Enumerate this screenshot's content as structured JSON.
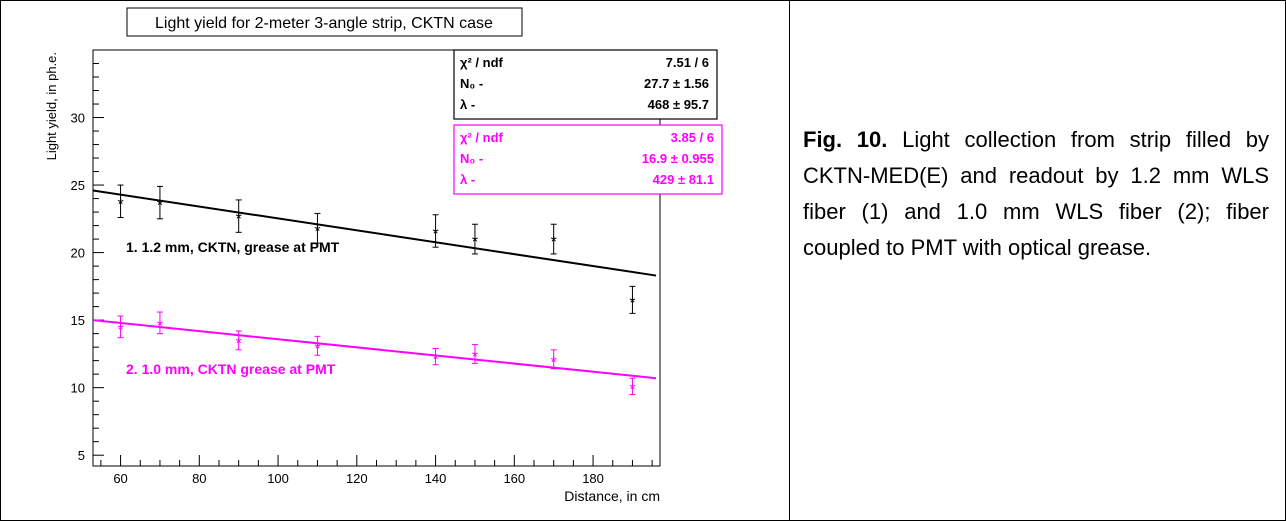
{
  "chart_data": {
    "type": "scatter",
    "title": "Light yield for 2-meter 3-angle strip, CKTN case",
    "xlabel": "Distance, in cm",
    "ylabel": "Light yield, in ph.e.",
    "xlim": [
      53,
      197
    ],
    "ylim": [
      4.2,
      35
    ],
    "xticks": [
      60,
      80,
      100,
      120,
      140,
      160,
      180
    ],
    "yticks": [
      5,
      10,
      15,
      20,
      25,
      30
    ],
    "grid": false,
    "series": [
      {
        "name": "1. 1.2 mm,  CKTN, grease at  PMT",
        "color": "#000000",
        "marker": "asterisk",
        "x": [
          60,
          70,
          90,
          110,
          140,
          150,
          170,
          190
        ],
        "y": [
          23.8,
          23.7,
          22.7,
          21.8,
          21.6,
          21.0,
          21.0,
          16.5
        ],
        "err": [
          1.2,
          1.2,
          1.2,
          1.1,
          1.2,
          1.1,
          1.1,
          1.0
        ],
        "fit": {
          "x": [
            53,
            196
          ],
          "y": [
            24.6,
            18.3
          ]
        }
      },
      {
        "name": "2. 1.0 mm,  CKTN grease at  PMT",
        "color": "#ff00ff",
        "marker": "asterisk",
        "x": [
          60,
          70,
          90,
          110,
          140,
          150,
          170,
          190
        ],
        "y": [
          14.5,
          14.8,
          13.5,
          13.1,
          12.3,
          12.5,
          12.1,
          10.1
        ],
        "err": [
          0.8,
          0.8,
          0.7,
          0.7,
          0.6,
          0.7,
          0.7,
          0.6
        ],
        "fit": {
          "x": [
            53,
            196
          ],
          "y": [
            15.0,
            10.7
          ]
        }
      }
    ],
    "stats_boxes": [
      {
        "color": "#000000",
        "rows": [
          {
            "label": "χ² / ndf",
            "value": "7.51 / 6"
          },
          {
            "label": "N₀ -",
            "value": "27.7 ± 1.56"
          },
          {
            "label": "λ -",
            "value": "468 ± 95.7"
          }
        ]
      },
      {
        "color": "#ff00ff",
        "rows": [
          {
            "label": "χ² / ndf",
            "value": "3.85 / 6"
          },
          {
            "label": "N₀ -",
            "value": "16.9 ± 0.955"
          },
          {
            "label": "λ -",
            "value": "429 ± 81.1"
          }
        ]
      }
    ]
  },
  "caption": {
    "fig_label": "Fig. 10.",
    "text": " Light collection from strip filled by CKTN-MED(E) and readout by 1.2 mm WLS fiber (1) and 1.0 mm WLS fiber (2); fiber coupled to PMT with optical grease."
  }
}
